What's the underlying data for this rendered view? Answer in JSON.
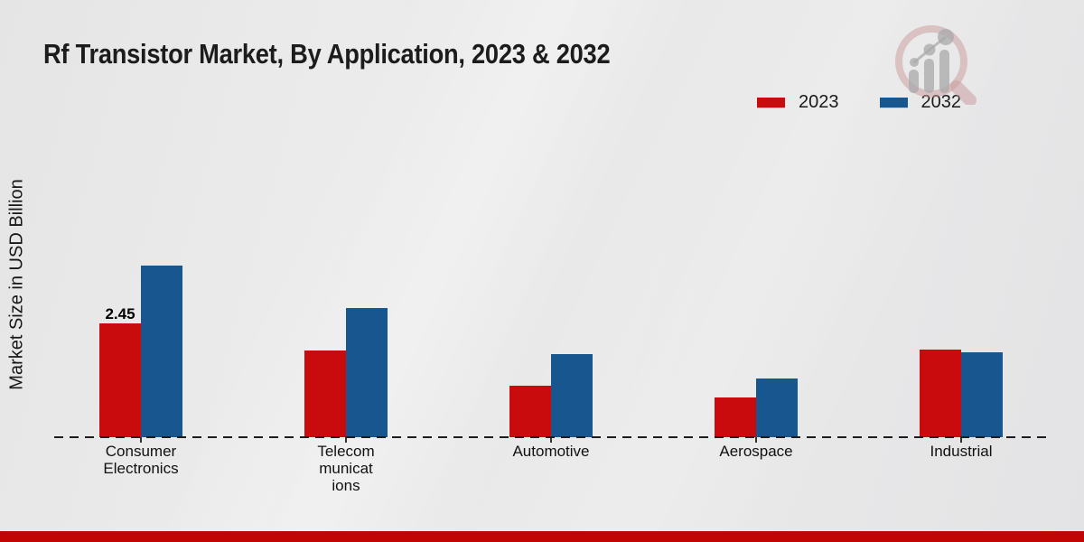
{
  "page": {
    "title": "Rf Transistor Market, By Application, 2023 & 2032",
    "y_axis_label": "Market Size in USD Billion",
    "background_color": "#e9e9e9",
    "axis_line_color": "#1c1c1c",
    "footer_color": "#c10404"
  },
  "legend": {
    "position": "top-right",
    "items": [
      {
        "label": "2023",
        "color": "#c90b0d"
      },
      {
        "label": "2032",
        "color": "#17568f"
      }
    ]
  },
  "chart_data": {
    "type": "bar",
    "title": "Rf Transistor Market, By Application, 2023 & 2032",
    "xlabel": "",
    "ylabel": "Market Size in USD Billion",
    "categories": [
      "Consumer Electronics",
      "Telecommunications",
      "Automotive",
      "Aerospace",
      "Industrial"
    ],
    "category_display_lines": [
      [
        "Consumer",
        "Electronics"
      ],
      [
        "Telecom",
        "municat",
        "ions"
      ],
      [
        "Automotive"
      ],
      [
        "Aerospace"
      ],
      [
        "Industrial"
      ]
    ],
    "series": [
      {
        "name": "2023",
        "color": "#c90b0d",
        "values": [
          2.45,
          1.86,
          1.11,
          0.86,
          1.89
        ]
      },
      {
        "name": "2032",
        "color": "#17568f",
        "values": [
          3.7,
          2.78,
          1.78,
          1.26,
          1.83
        ]
      }
    ],
    "annotations": [
      {
        "series": "2023",
        "category": "Consumer Electronics",
        "text": "2.45"
      }
    ],
    "ylim": [
      0,
      4.2
    ],
    "grid": false,
    "baseline_style": "dashed",
    "legend_position": "top-right",
    "units": "USD Billion"
  },
  "watermark": {
    "name": "magnifier-bar-chart-logo"
  }
}
